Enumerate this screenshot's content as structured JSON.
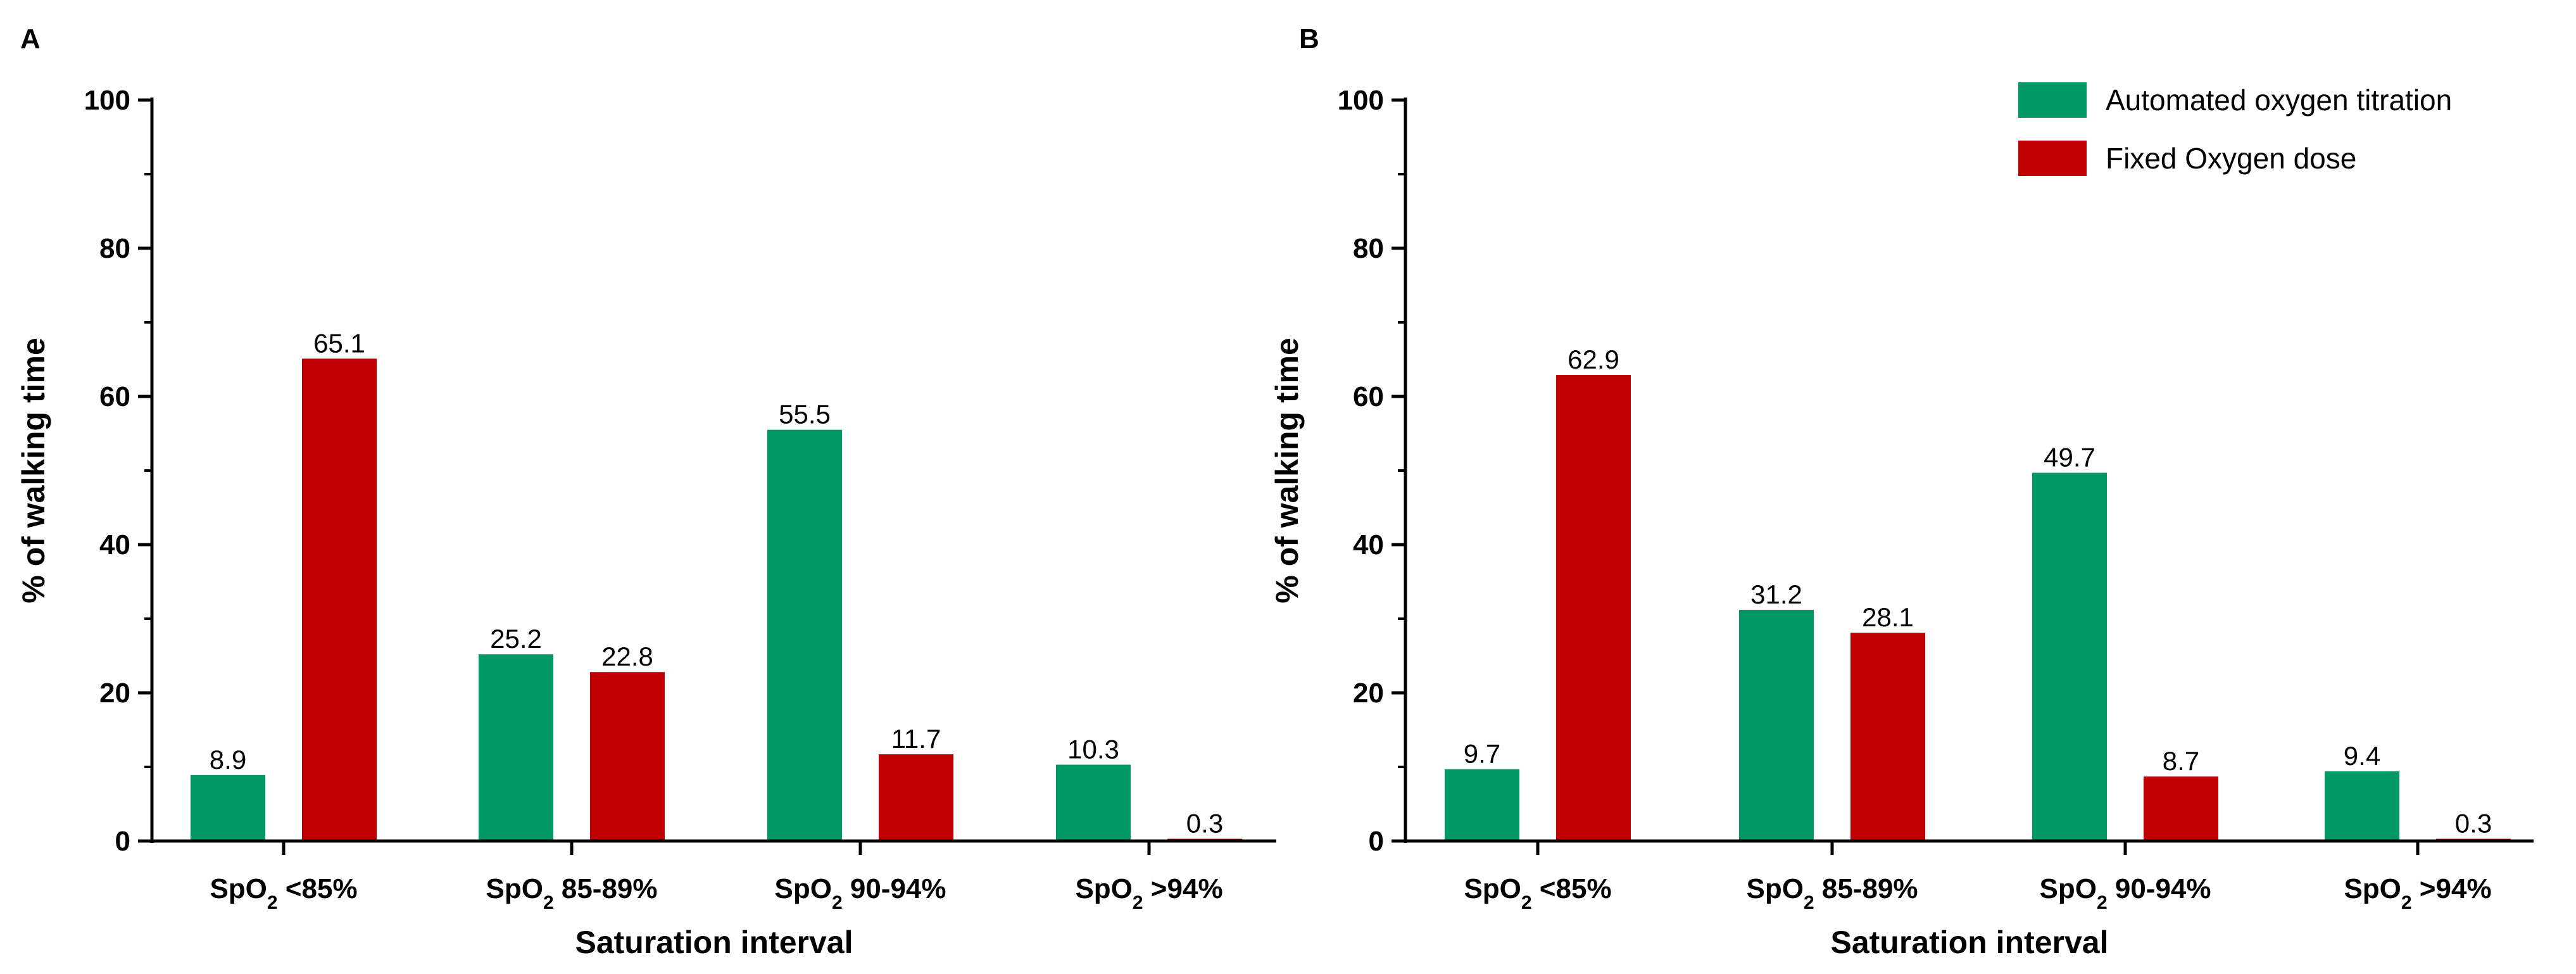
{
  "legend": [
    {
      "label": "Automated oxygen titration",
      "color": "#009966"
    },
    {
      "label": "Fixed Oxygen dose",
      "color": "#C00000"
    }
  ],
  "chart_data": [
    {
      "panel": "A",
      "type": "bar",
      "categories": [
        {
          "base": "SpO",
          "sub": "2",
          "rest": " <85%"
        },
        {
          "base": "SpO",
          "sub": "2",
          "rest": " 85-89%"
        },
        {
          "base": "SpO",
          "sub": "2",
          "rest": " 90-94%"
        },
        {
          "base": "SpO",
          "sub": "2",
          "rest": " >94%"
        }
      ],
      "series": [
        {
          "name": "Automated oxygen titration",
          "values": [
            8.9,
            25.2,
            55.5,
            10.3
          ],
          "labels": [
            "8.9",
            "25.2",
            "55.5",
            "10.3"
          ]
        },
        {
          "name": "Fixed Oxygen dose",
          "values": [
            65.1,
            22.8,
            11.7,
            0.3
          ],
          "labels": [
            "65.1",
            "22.8",
            "11.7",
            "0.3"
          ]
        }
      ],
      "xlabel": "Saturation interval",
      "ylabel": "% of walking time",
      "ylim": [
        0,
        100
      ],
      "yticks": [
        0,
        20,
        40,
        60,
        80,
        100
      ],
      "ytick_labels": [
        "0",
        "20",
        "40",
        "60",
        "80",
        "100"
      ]
    },
    {
      "panel": "B",
      "type": "bar",
      "categories": [
        {
          "base": "SpO",
          "sub": "2",
          "rest": " <85%"
        },
        {
          "base": "SpO",
          "sub": "2",
          "rest": " 85-89%"
        },
        {
          "base": "SpO",
          "sub": "2",
          "rest": " 90-94%"
        },
        {
          "base": "SpO",
          "sub": "2",
          "rest": " >94%"
        }
      ],
      "series": [
        {
          "name": "Automated oxygen titration",
          "values": [
            9.7,
            31.2,
            49.7,
            9.4
          ],
          "labels": [
            "9.7",
            "31.2",
            "49.7",
            "9.4"
          ]
        },
        {
          "name": "Fixed Oxygen dose",
          "values": [
            62.9,
            28.1,
            8.7,
            0.3
          ],
          "labels": [
            "62.9",
            "28.1",
            "8.7",
            "0.3"
          ]
        }
      ],
      "xlabel": "Saturation interval",
      "ylabel": "% of walking time",
      "ylim": [
        0,
        100
      ],
      "yticks": [
        0,
        20,
        40,
        60,
        80,
        100
      ],
      "ytick_labels": [
        "0",
        "20",
        "40",
        "60",
        "80",
        "100"
      ]
    }
  ]
}
